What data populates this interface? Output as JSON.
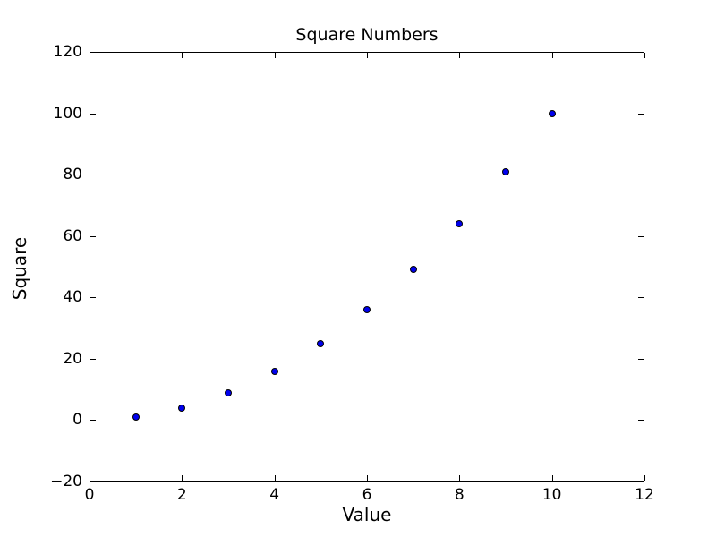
{
  "chart_data": {
    "type": "scatter",
    "title": "Square Numbers",
    "xlabel": "Value",
    "ylabel": "Square",
    "x": [
      1,
      2,
      3,
      4,
      5,
      6,
      7,
      8,
      9,
      10
    ],
    "y": [
      1,
      4,
      9,
      16,
      25,
      36,
      49,
      64,
      81,
      100
    ],
    "xlim": [
      0,
      12
    ],
    "ylim": [
      -20,
      120
    ],
    "xticks": [
      0,
      2,
      4,
      6,
      8,
      10,
      12
    ],
    "xtick_labels": [
      "0",
      "2",
      "4",
      "6",
      "8",
      "10",
      "12"
    ],
    "yticks": [
      -20,
      0,
      20,
      40,
      60,
      80,
      100,
      120
    ],
    "ytick_labels": [
      "−20",
      "0",
      "20",
      "40",
      "60",
      "80",
      "100",
      "120"
    ],
    "marker_color": "#0000ee",
    "marker_edge_color": "#000000",
    "axis_color": "#000000",
    "background_color": "#ffffff",
    "grid": false,
    "legend": null
  }
}
